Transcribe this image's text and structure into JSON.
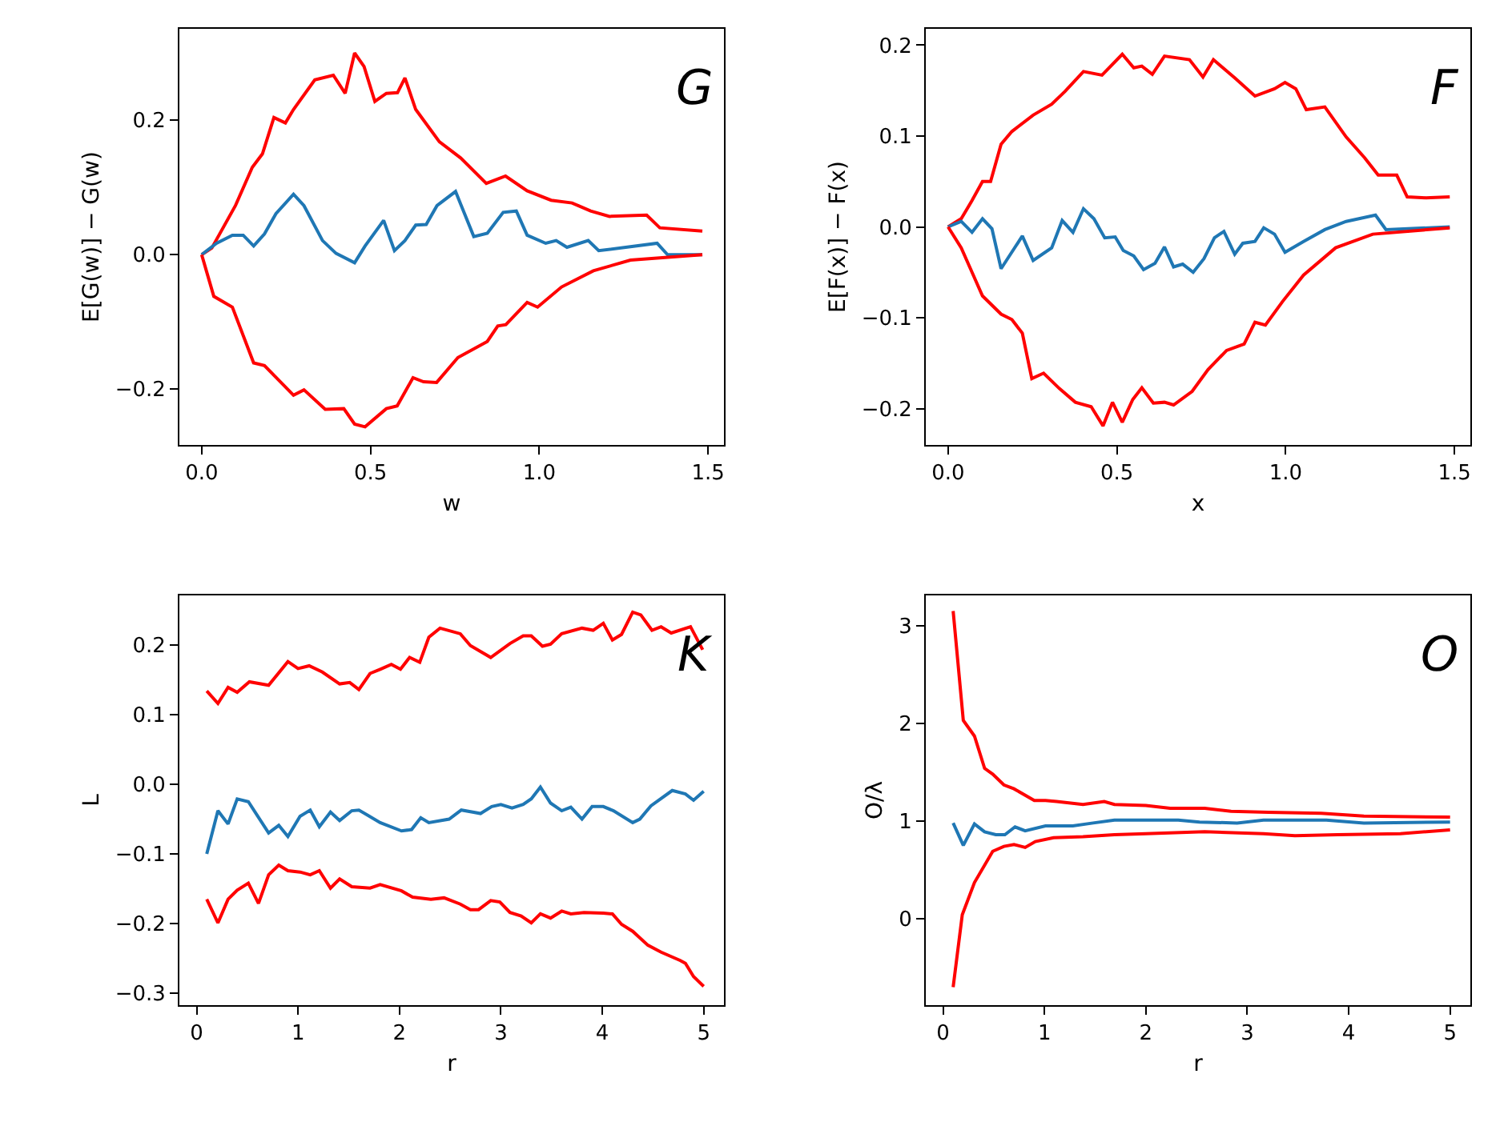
{
  "chart_data": [
    {
      "type": "line",
      "xlabel": "w",
      "ylabel": "E[G(w)] − G(w)",
      "annotations": [
        "G"
      ],
      "xlim": [
        -0.066,
        1.547
      ],
      "ylim": [
        -0.283,
        0.336
      ],
      "xticks": [
        {
          "value": 0,
          "label": "0.0"
        },
        {
          "value": 0.5,
          "label": "0.5"
        },
        {
          "value": 1,
          "label": "1.0"
        },
        {
          "value": 1.5,
          "label": "1.5"
        }
      ],
      "yticks": [
        {
          "value": -0.2,
          "label": "−0.2"
        },
        {
          "value": 0,
          "label": "0.0"
        },
        {
          "value": 0.2,
          "label": "0.2"
        }
      ],
      "series": [
        {
          "color": "#ff0000",
          "x": [
            0,
            0.03,
            0.1,
            0.15,
            0.18,
            0.214,
            0.248,
            0.272,
            0.335,
            0.39,
            0.425,
            0.453,
            0.481,
            0.513,
            0.547,
            0.58,
            0.602,
            0.634,
            0.704,
            0.767,
            0.843,
            0.9,
            0.964,
            1.035,
            1.097,
            1.152,
            1.208,
            1.318,
            1.357,
            1.483
          ],
          "values": [
            0,
            0.01,
            0.073,
            0.13,
            0.15,
            0.204,
            0.196,
            0.216,
            0.26,
            0.267,
            0.24,
            0.3,
            0.28,
            0.228,
            0.24,
            0.241,
            0.263,
            0.216,
            0.168,
            0.144,
            0.106,
            0.117,
            0.095,
            0.081,
            0.077,
            0.065,
            0.057,
            0.059,
            0.04,
            0.035
          ]
        },
        {
          "color": "#1f77b4",
          "x": [
            0,
            0.044,
            0.091,
            0.123,
            0.154,
            0.186,
            0.22,
            0.272,
            0.303,
            0.358,
            0.398,
            0.453,
            0.484,
            0.539,
            0.571,
            0.602,
            0.634,
            0.665,
            0.697,
            0.752,
            0.806,
            0.846,
            0.893,
            0.932,
            0.964,
            1.019,
            1.05,
            1.082,
            1.145,
            1.176,
            1.349,
            1.38,
            1.483
          ],
          "values": [
            0,
            0.017,
            0.029,
            0.029,
            0.013,
            0.031,
            0.061,
            0.09,
            0.073,
            0.021,
            0.002,
            -0.012,
            0.013,
            0.051,
            0.006,
            0.021,
            0.044,
            0.045,
            0.073,
            0.094,
            0.027,
            0.032,
            0.063,
            0.065,
            0.029,
            0.017,
            0.021,
            0.011,
            0.021,
            0.006,
            0.017,
            0,
            0
          ]
        },
        {
          "color": "#ff0000",
          "x": [
            0,
            0.036,
            0.091,
            0.154,
            0.186,
            0.225,
            0.272,
            0.303,
            0.366,
            0.421,
            0.453,
            0.484,
            0.547,
            0.579,
            0.626,
            0.657,
            0.696,
            0.759,
            0.846,
            0.877,
            0.901,
            0.964,
            0.995,
            1.066,
            1.16,
            1.27,
            1.483
          ],
          "values": [
            0,
            -0.062,
            -0.078,
            -0.161,
            -0.165,
            -0.185,
            -0.209,
            -0.201,
            -0.23,
            -0.229,
            -0.252,
            -0.256,
            -0.229,
            -0.225,
            -0.183,
            -0.189,
            -0.19,
            -0.153,
            -0.129,
            -0.106,
            -0.104,
            -0.071,
            -0.078,
            -0.048,
            -0.024,
            -0.008,
            0
          ]
        }
      ]
    },
    {
      "type": "line",
      "xlabel": "x",
      "ylabel": "E[F(x)] − F(x)",
      "annotations": [
        "F"
      ],
      "xlim": [
        -0.066,
        1.547
      ],
      "ylim": [
        -0.24,
        0.218
      ],
      "xticks": [
        {
          "value": 0,
          "label": "0.0"
        },
        {
          "value": 0.5,
          "label": "0.5"
        },
        {
          "value": 1,
          "label": "1.0"
        },
        {
          "value": 1.5,
          "label": "1.5"
        }
      ],
      "yticks": [
        {
          "value": -0.2,
          "label": "−0.2"
        },
        {
          "value": -0.1,
          "label": "−0.1"
        },
        {
          "value": 0,
          "label": "0.0"
        },
        {
          "value": 0.1,
          "label": "0.1"
        },
        {
          "value": 0.2,
          "label": "0.2"
        }
      ],
      "series": [
        {
          "color": "#ff0000",
          "x": [
            0,
            0.039,
            0.071,
            0.102,
            0.126,
            0.157,
            0.189,
            0.252,
            0.307,
            0.346,
            0.401,
            0.456,
            0.516,
            0.55,
            0.574,
            0.605,
            0.641,
            0.715,
            0.755,
            0.786,
            0.849,
            0.909,
            0.967,
            0.998,
            1.03,
            1.061,
            1.116,
            1.179,
            1.234,
            1.274,
            1.329,
            1.36,
            1.415,
            1.486
          ],
          "values": [
            0,
            0.009,
            0.029,
            0.05,
            0.05,
            0.091,
            0.105,
            0.123,
            0.135,
            0.149,
            0.171,
            0.167,
            0.19,
            0.175,
            0.177,
            0.168,
            0.188,
            0.184,
            0.165,
            0.184,
            0.164,
            0.144,
            0.152,
            0.159,
            0.152,
            0.129,
            0.132,
            0.099,
            0.076,
            0.057,
            0.057,
            0.033,
            0.032,
            0.033
          ]
        },
        {
          "color": "#1f77b4",
          "x": [
            0,
            0.039,
            0.071,
            0.102,
            0.13,
            0.157,
            0.22,
            0.252,
            0.307,
            0.338,
            0.37,
            0.401,
            0.432,
            0.464,
            0.495,
            0.519,
            0.55,
            0.579,
            0.613,
            0.641,
            0.668,
            0.695,
            0.726,
            0.758,
            0.789,
            0.817,
            0.849,
            0.873,
            0.909,
            0.935,
            0.967,
            0.998,
            1.053,
            1.116,
            1.179,
            1.266,
            1.297,
            1.486
          ],
          "values": [
            0,
            0.006,
            -0.006,
            0.009,
            -0.002,
            -0.046,
            -0.01,
            -0.037,
            -0.023,
            0.007,
            -0.006,
            0.02,
            0.009,
            -0.012,
            -0.011,
            -0.026,
            -0.032,
            -0.047,
            -0.04,
            -0.022,
            -0.044,
            -0.041,
            -0.05,
            -0.035,
            -0.012,
            -0.005,
            -0.03,
            -0.018,
            -0.016,
            -0.001,
            -0.008,
            -0.028,
            -0.016,
            -0.003,
            0.006,
            0.013,
            -0.003,
            0
          ]
        },
        {
          "color": "#ff0000",
          "x": [
            0,
            0.039,
            0.071,
            0.102,
            0.157,
            0.189,
            0.22,
            0.248,
            0.283,
            0.33,
            0.377,
            0.424,
            0.459,
            0.487,
            0.516,
            0.547,
            0.574,
            0.608,
            0.641,
            0.668,
            0.723,
            0.77,
            0.825,
            0.877,
            0.909,
            0.94,
            0.991,
            1.053,
            1.148,
            1.258,
            1.486
          ],
          "values": [
            0,
            -0.023,
            -0.05,
            -0.076,
            -0.096,
            -0.102,
            -0.117,
            -0.167,
            -0.161,
            -0.178,
            -0.193,
            -0.198,
            -0.219,
            -0.193,
            -0.215,
            -0.19,
            -0.177,
            -0.194,
            -0.193,
            -0.196,
            -0.181,
            -0.157,
            -0.136,
            -0.129,
            -0.105,
            -0.108,
            -0.082,
            -0.053,
            -0.023,
            -0.008,
            -0.001
          ]
        }
      ]
    },
    {
      "type": "line",
      "xlabel": "r",
      "ylabel": "L",
      "annotations": [
        "K"
      ],
      "xlim": [
        -0.17,
        5.2
      ],
      "ylim": [
        -0.317,
        0.271
      ],
      "xticks": [
        0,
        1,
        2,
        3,
        4,
        5
      ],
      "yticks": [
        {
          "value": -0.3,
          "label": "−0.3"
        },
        {
          "value": -0.2,
          "label": "−0.2"
        },
        {
          "value": -0.1,
          "label": "−0.1"
        },
        {
          "value": 0,
          "label": "0.0"
        },
        {
          "value": 0.1,
          "label": "0.1"
        },
        {
          "value": 0.2,
          "label": "0.2"
        }
      ],
      "series": [
        {
          "color": "#ff0000",
          "x": [
            0.1,
            0.21,
            0.31,
            0.4,
            0.52,
            0.71,
            0.9,
            1.0,
            1.11,
            1.24,
            1.41,
            1.51,
            1.6,
            1.71,
            1.81,
            1.92,
            2.01,
            2.1,
            2.2,
            2.29,
            2.4,
            2.6,
            2.7,
            2.9,
            3.09,
            3.22,
            3.3,
            3.41,
            3.49,
            3.6,
            3.8,
            3.91,
            4.01,
            4.1,
            4.19,
            4.3,
            4.38,
            4.49,
            4.58,
            4.68,
            4.87,
            4.99
          ],
          "values": [
            0.134,
            0.116,
            0.139,
            0.132,
            0.147,
            0.142,
            0.176,
            0.166,
            0.17,
            0.161,
            0.144,
            0.146,
            0.136,
            0.159,
            0.165,
            0.172,
            0.165,
            0.182,
            0.175,
            0.211,
            0.224,
            0.216,
            0.199,
            0.182,
            0.202,
            0.213,
            0.213,
            0.198,
            0.201,
            0.216,
            0.224,
            0.221,
            0.231,
            0.207,
            0.215,
            0.247,
            0.243,
            0.221,
            0.226,
            0.217,
            0.226,
            0.193
          ]
        },
        {
          "color": "#1f77b4",
          "x": [
            0.1,
            0.21,
            0.31,
            0.4,
            0.51,
            0.71,
            0.81,
            0.9,
            1.02,
            1.12,
            1.21,
            1.32,
            1.41,
            1.53,
            1.6,
            1.81,
            2.02,
            2.12,
            2.21,
            2.29,
            2.49,
            2.61,
            2.8,
            2.91,
            3.0,
            3.11,
            3.22,
            3.3,
            3.39,
            3.49,
            3.6,
            3.69,
            3.8,
            3.9,
            4.01,
            4.11,
            4.3,
            4.37,
            4.48,
            4.69,
            4.82,
            4.9,
            5.0
          ],
          "values": [
            -0.1,
            -0.038,
            -0.057,
            -0.021,
            -0.025,
            -0.07,
            -0.059,
            -0.075,
            -0.046,
            -0.037,
            -0.061,
            -0.04,
            -0.052,
            -0.038,
            -0.037,
            -0.055,
            -0.067,
            -0.065,
            -0.048,
            -0.055,
            -0.05,
            -0.037,
            -0.042,
            -0.032,
            -0.029,
            -0.034,
            -0.029,
            -0.021,
            -0.004,
            -0.027,
            -0.038,
            -0.033,
            -0.05,
            -0.032,
            -0.032,
            -0.038,
            -0.055,
            -0.05,
            -0.031,
            -0.009,
            -0.014,
            -0.023,
            -0.01
          ]
        },
        {
          "color": "#ff0000",
          "x": [
            0.1,
            0.21,
            0.31,
            0.4,
            0.51,
            0.61,
            0.71,
            0.81,
            0.9,
            1.02,
            1.12,
            1.21,
            1.32,
            1.41,
            1.53,
            1.71,
            1.81,
            2.02,
            2.13,
            2.31,
            2.44,
            2.6,
            2.7,
            2.78,
            2.9,
            2.99,
            3.09,
            3.2,
            3.3,
            3.39,
            3.49,
            3.6,
            3.69,
            3.82,
            4.01,
            4.1,
            4.19,
            4.3,
            4.45,
            4.58,
            4.77,
            4.82,
            4.9,
            5.0
          ],
          "values": [
            -0.165,
            -0.199,
            -0.165,
            -0.152,
            -0.142,
            -0.171,
            -0.13,
            -0.116,
            -0.124,
            -0.126,
            -0.13,
            -0.124,
            -0.149,
            -0.136,
            -0.147,
            -0.149,
            -0.144,
            -0.153,
            -0.162,
            -0.165,
            -0.163,
            -0.172,
            -0.18,
            -0.18,
            -0.167,
            -0.169,
            -0.184,
            -0.189,
            -0.199,
            -0.186,
            -0.192,
            -0.182,
            -0.186,
            -0.184,
            -0.185,
            -0.186,
            -0.201,
            -0.211,
            -0.231,
            -0.241,
            -0.253,
            -0.257,
            -0.276,
            -0.29
          ]
        }
      ]
    },
    {
      "type": "line",
      "xlabel": "r",
      "ylabel": "O/λ",
      "annotations": [
        "O"
      ],
      "xlim": [
        -0.17,
        5.2
      ],
      "ylim": [
        -0.885,
        3.31
      ],
      "xticks": [
        0,
        1,
        2,
        3,
        4,
        5
      ],
      "yticks": [
        0,
        1,
        2,
        3
      ],
      "series": [
        {
          "color": "#ff0000",
          "x": [
            0.1,
            0.2,
            0.31,
            0.41,
            0.49,
            0.6,
            0.7,
            0.9,
            1.01,
            1.12,
            1.38,
            1.59,
            1.69,
            2.0,
            2.24,
            2.58,
            2.84,
            3.21,
            3.73,
            4.15,
            5.0
          ],
          "values": [
            3.15,
            2.03,
            1.87,
            1.54,
            1.48,
            1.37,
            1.33,
            1.21,
            1.21,
            1.2,
            1.17,
            1.2,
            1.17,
            1.16,
            1.13,
            1.13,
            1.1,
            1.09,
            1.08,
            1.05,
            1.04
          ]
        },
        {
          "color": "#1f77b4",
          "x": [
            0.1,
            0.2,
            0.31,
            0.41,
            0.52,
            0.61,
            0.71,
            0.81,
            1.01,
            1.28,
            1.48,
            1.69,
            2.0,
            2.32,
            2.53,
            2.9,
            3.16,
            3.47,
            3.78,
            4.15,
            5.0
          ],
          "values": [
            0.98,
            0.75,
            0.97,
            0.89,
            0.86,
            0.86,
            0.94,
            0.9,
            0.95,
            0.95,
            0.98,
            1.01,
            1.01,
            1.01,
            0.99,
            0.98,
            1.01,
            1.01,
            1.01,
            0.98,
            0.99
          ]
        },
        {
          "color": "#ff0000",
          "x": [
            0.1,
            0.19,
            0.31,
            0.49,
            0.6,
            0.7,
            0.81,
            0.91,
            1.09,
            1.38,
            1.69,
            2.0,
            2.58,
            3.16,
            3.47,
            3.89,
            4.51,
            5.0
          ],
          "values": [
            -0.7,
            0.04,
            0.37,
            0.69,
            0.74,
            0.76,
            0.73,
            0.79,
            0.83,
            0.84,
            0.86,
            0.87,
            0.89,
            0.87,
            0.85,
            0.86,
            0.87,
            0.91
          ]
        }
      ]
    }
  ]
}
